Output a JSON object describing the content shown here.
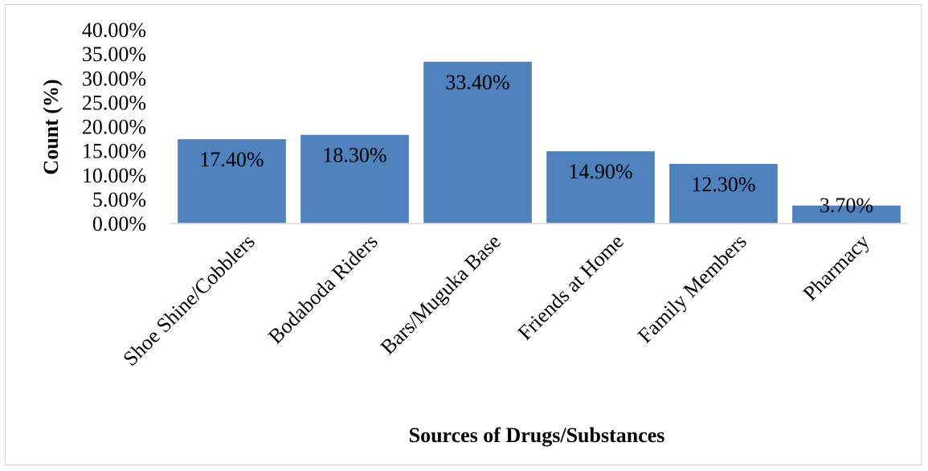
{
  "chart_data": {
    "type": "bar",
    "categories": [
      "Shoe Shine/Cobblers",
      "Bodaboda Riders",
      "Bars/Muguka Base",
      "Friends at Home",
      "Family Members",
      "Pharmacy"
    ],
    "values": [
      17.4,
      18.3,
      33.4,
      14.9,
      12.3,
      3.7
    ],
    "value_labels": [
      "17.40%",
      "18.30%",
      "33.40%",
      "14.90%",
      "12.30%",
      "3.70%"
    ],
    "title": "",
    "xlabel": "Sources of Drugs/Substances",
    "ylabel": "Count (%)",
    "ylim": [
      0,
      40
    ],
    "yticks": [
      "0.00%",
      "5.00%",
      "10.00%",
      "15.00%",
      "20.00%",
      "25.00%",
      "30.00%",
      "35.00%",
      "40.00%"
    ],
    "grid": false,
    "legend": "none",
    "bar_color": "#4f81bd"
  }
}
